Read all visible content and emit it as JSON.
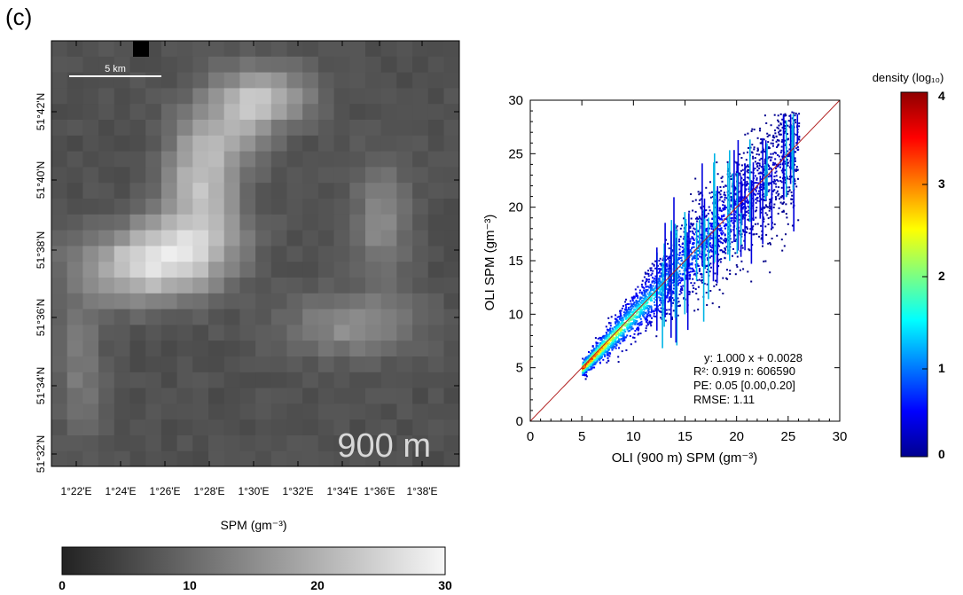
{
  "panel_label": "(c)",
  "map": {
    "scale_bar_label": "5 km",
    "resolution_label": "900 m",
    "lat_labels": [
      "51°42'N",
      "51°40'N",
      "51°38'N",
      "51°36'N",
      "51°34'N",
      "51°32'N"
    ],
    "lon_labels": [
      "1°22'E",
      "1°24'E",
      "1°26'E",
      "1°28'E",
      "1°30'E",
      "1°32'E",
      "1°34'E",
      "1°36'E",
      "1°38'E"
    ],
    "colorbar_title": "SPM (gm⁻³)",
    "colorbar_ticks": [
      "0",
      "10",
      "20",
      "30"
    ],
    "colorbar_range": [
      0,
      30
    ]
  },
  "chart_data": [
    {
      "type": "heatmap",
      "title": "",
      "xlabel": "",
      "ylabel": "",
      "x_ticks": [
        "1°22'E",
        "1°24'E",
        "1°26'E",
        "1°28'E",
        "1°30'E",
        "1°32'E",
        "1°34'E",
        "1°36'E",
        "1°38'E"
      ],
      "y_ticks": [
        "51°42'N",
        "51°40'N",
        "51°38'N",
        "51°36'N",
        "51°34'N",
        "51°32'N"
      ],
      "value_label": "SPM (gm⁻³)",
      "value_range": [
        0,
        30
      ],
      "colormap": "grayscale",
      "annotations": [
        "5 km",
        "900 m"
      ]
    },
    {
      "type": "scatter",
      "title": "",
      "xlabel": "OLI (900 m) SPM (gm⁻³)",
      "ylabel": "OLI SPM (gm⁻³)",
      "xlim": [
        0,
        30
      ],
      "ylim": [
        0,
        30
      ],
      "x_ticks": [
        "0",
        "5",
        "10",
        "15",
        "20",
        "25",
        "30"
      ],
      "y_ticks": [
        "0",
        "5",
        "10",
        "15",
        "20",
        "25",
        "30"
      ],
      "one_to_one_line": true,
      "fit_line": {
        "slope": 1.0,
        "intercept": 0.0028
      },
      "stats": {
        "line1": "y:  1.000 x + 0.0028",
        "line2": "R²: 0.919 n:  606590",
        "line3": "PE: 0.05 [0.00,0.20]",
        "line4": "RMSE: 1.11"
      },
      "n": 606590,
      "r2": 0.919,
      "rmse": 1.11,
      "x_data_range": [
        5,
        26
      ],
      "density_colorbar": {
        "title": "density (log₁₀)",
        "ticks": [
          "0",
          "1",
          "2",
          "3",
          "4"
        ],
        "range": [
          0,
          4
        ]
      }
    }
  ]
}
